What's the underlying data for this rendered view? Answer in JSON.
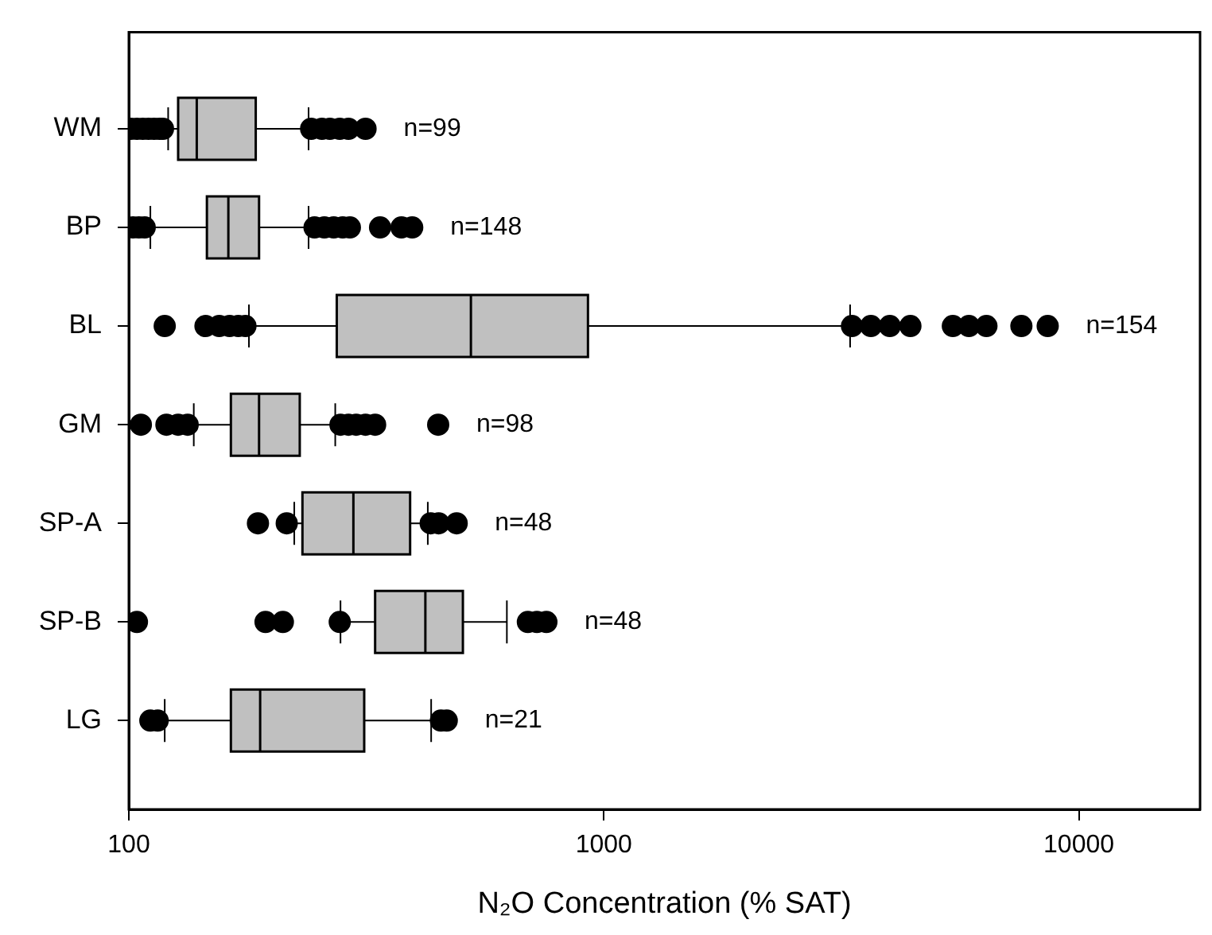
{
  "chart_data": {
    "type": "box",
    "orientation": "horizontal",
    "xlabel": "N₂O Concentration (% SAT)",
    "log": "x",
    "grid": false,
    "marker": "circle",
    "color": "#c0c0c0",
    "categories": [
      "WM",
      "BP",
      "BL",
      "GM",
      "SP-A",
      "SP-B",
      "LG"
    ],
    "xlim": [
      100,
      18000
    ],
    "xticks": [
      100,
      1000,
      10000
    ],
    "boxes": [
      {
        "low": 121,
        "q1": 127,
        "median": 139,
        "q3": 185,
        "high": 239,
        "outliers": [
          101,
          104,
          107,
          110,
          113,
          116,
          118,
          242,
          255,
          265,
          278,
          290,
          315
        ]
      },
      {
        "low": 111,
        "q1": 146,
        "median": 162,
        "q3": 188,
        "high": 239,
        "outliers": [
          102,
          105,
          108,
          246,
          258,
          270,
          282,
          292,
          338,
          375,
          395
        ]
      },
      {
        "low": 179,
        "q1": 274,
        "median": 525,
        "q3": 926,
        "high": 3300,
        "outliers": [
          119,
          145,
          155,
          163,
          170,
          176,
          3330,
          3650,
          4000,
          4420,
          5430,
          5870,
          6390,
          7570,
          8600
        ]
      },
      {
        "low": 137,
        "q1": 164,
        "median": 188,
        "q3": 229,
        "high": 272,
        "outliers": [
          106,
          120,
          127,
          133,
          279,
          290,
          301,
          315,
          330,
          448
        ]
      },
      {
        "low": 223,
        "q1": 232,
        "median": 297,
        "q3": 391,
        "high": 426,
        "outliers": [
          187,
          215,
          432,
          449,
          490
        ]
      },
      {
        "low": 279,
        "q1": 330,
        "median": 421,
        "q3": 505,
        "high": 625,
        "outliers": [
          104,
          194,
          211,
          278,
          692,
          723,
          757
        ]
      },
      {
        "low": 119,
        "q1": 164,
        "median": 189,
        "q3": 313,
        "high": 433,
        "outliers": [
          111,
          115,
          454,
          467
        ]
      }
    ],
    "annotations": [
      "n=99",
      "n=148",
      "n=154",
      "n=98",
      "n=48",
      "n=48",
      "n=21"
    ]
  }
}
